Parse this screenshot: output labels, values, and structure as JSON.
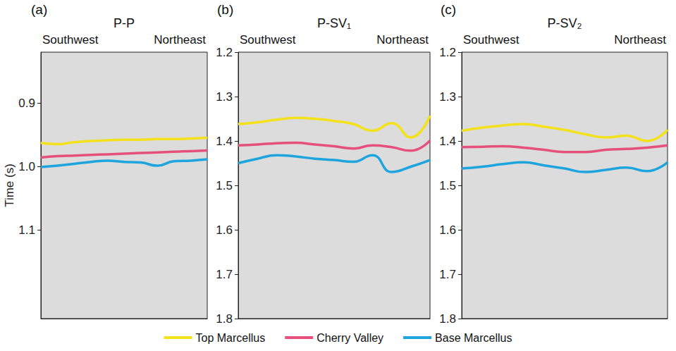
{
  "chart_data": [
    {
      "type": "line",
      "label": "(a)",
      "title": "P-P",
      "annotations": [
        "Southwest",
        "Northeast"
      ],
      "ylabel": "Time (s)",
      "tick_labels": "y",
      "legend": "bottom",
      "grid": false,
      "x": [
        0,
        10,
        20,
        30,
        40,
        50,
        60,
        70,
        80,
        90,
        100
      ],
      "xlim": [
        0,
        100
      ],
      "ylim": [
        0.82,
        1.24
      ],
      "yticks": [
        0.9,
        {
          "value": 1.0,
          "label": "1.0"
        },
        1.1
      ],
      "series": [
        {
          "name": "Top Marcellus",
          "color": "#f3e21b",
          "values": [
            0.963,
            0.965,
            0.962,
            0.96,
            0.959,
            0.958,
            0.958,
            0.957,
            0.957,
            0.956,
            0.955
          ]
        },
        {
          "name": "Cherry Valley",
          "color": "#e6507c",
          "values": [
            0.986,
            0.984,
            0.983,
            0.982,
            0.981,
            0.98,
            0.979,
            0.978,
            0.977,
            0.976,
            0.975
          ]
        },
        {
          "name": "Base Marcellus",
          "color": "#1ea5de",
          "values": [
            1.001,
            0.999,
            0.996,
            0.993,
            0.991,
            0.993,
            0.994,
            0.999,
            0.992,
            0.991,
            0.989
          ]
        }
      ]
    },
    {
      "type": "line",
      "label": "(b)",
      "title": "P-SV₁",
      "annotations": [
        "Southwest",
        "Northeast"
      ],
      "tick_labels": "y",
      "legend": "bottom",
      "grid": false,
      "x": [
        0,
        10,
        20,
        30,
        40,
        50,
        60,
        70,
        80,
        90,
        100
      ],
      "xlim": [
        0,
        100
      ],
      "ylim": [
        1.2,
        1.8
      ],
      "yticks": [
        1.2,
        1.3,
        1.4,
        1.5,
        1.6,
        1.7,
        1.8
      ],
      "series": [
        {
          "name": "Top Marcellus",
          "color": "#f3e21b",
          "values": [
            1.362,
            1.358,
            1.352,
            1.348,
            1.35,
            1.355,
            1.362,
            1.377,
            1.36,
            1.392,
            1.343
          ]
        },
        {
          "name": "Cherry Valley",
          "color": "#e6507c",
          "values": [
            1.41,
            1.408,
            1.405,
            1.404,
            1.408,
            1.412,
            1.417,
            1.41,
            1.414,
            1.422,
            1.399
          ]
        },
        {
          "name": "Base Marcellus",
          "color": "#1ea5de",
          "values": [
            1.45,
            1.44,
            1.432,
            1.435,
            1.44,
            1.443,
            1.447,
            1.432,
            1.47,
            1.458,
            1.443
          ]
        }
      ]
    },
    {
      "type": "line",
      "label": "(c)",
      "title": "P-SV₂",
      "annotations": [
        "Southwest",
        "Northeast"
      ],
      "tick_labels": "y",
      "legend": "bottom",
      "grid": false,
      "x": [
        0,
        10,
        20,
        30,
        40,
        50,
        60,
        70,
        80,
        90,
        100
      ],
      "xlim": [
        0,
        100
      ],
      "ylim": [
        1.2,
        1.8
      ],
      "yticks": [
        1.2,
        1.3,
        1.4,
        1.5,
        1.6,
        1.7,
        1.8
      ],
      "series": [
        {
          "name": "Top Marcellus",
          "color": "#f3e21b",
          "values": [
            1.377,
            1.37,
            1.365,
            1.362,
            1.368,
            1.375,
            1.385,
            1.392,
            1.388,
            1.4,
            1.375
          ]
        },
        {
          "name": "Cherry Valley",
          "color": "#e6507c",
          "values": [
            1.414,
            1.413,
            1.412,
            1.415,
            1.42,
            1.425,
            1.425,
            1.42,
            1.418,
            1.415,
            1.41
          ]
        },
        {
          "name": "Base Marcellus",
          "color": "#1ea5de",
          "values": [
            1.462,
            1.458,
            1.452,
            1.448,
            1.455,
            1.462,
            1.47,
            1.465,
            1.46,
            1.468,
            1.448
          ]
        }
      ]
    }
  ]
}
